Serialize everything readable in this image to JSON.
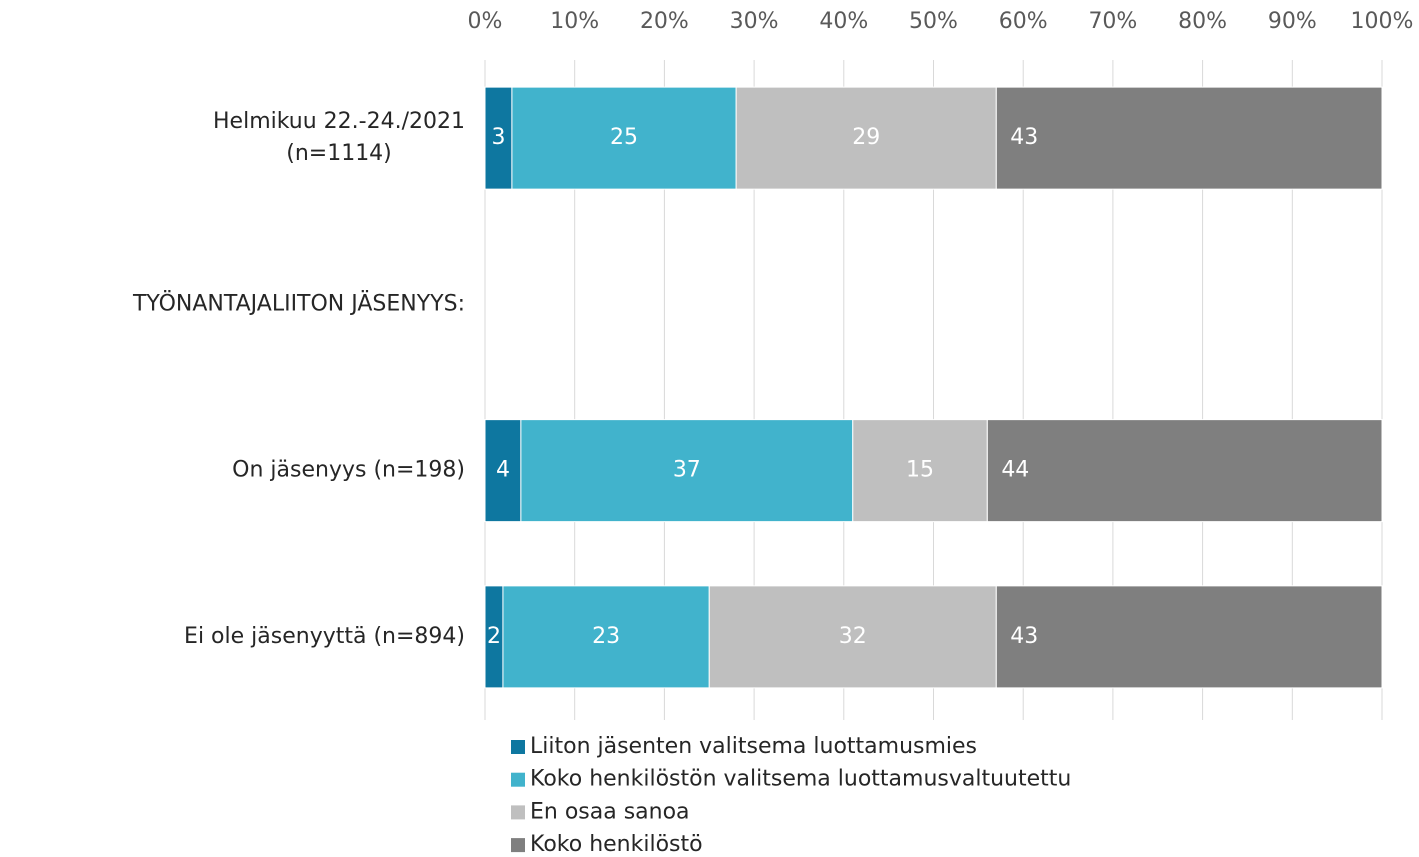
{
  "chart_data": {
    "type": "stacked_bar_horizontal",
    "categories": [
      "Helmikuu 22.-24./2021\n(n=1114)",
      "TYÖNANTAJALIITON JÄSENYYS:",
      "On jäsenyys (n=198)",
      "Ei ole jäsenyyttä (n=894)"
    ],
    "series": [
      {
        "name": "Liiton jäsenten valitsema luottamusmies",
        "color": "#0e77a0",
        "values": [
          3,
          null,
          4,
          2
        ]
      },
      {
        "name": "Koko henkilöstön valitsema luottamusvaltuutettu",
        "color": "#41b3cc",
        "values": [
          25,
          null,
          37,
          23
        ]
      },
      {
        "name": "En osaa sanoa",
        "color": "#bfbfbf",
        "values": [
          29,
          null,
          15,
          32
        ]
      },
      {
        "name": "Koko henkilöstö",
        "color": "#7f7f7f",
        "values": [
          43,
          null,
          44,
          43
        ]
      }
    ],
    "xlim": [
      0,
      100
    ],
    "xticks": [
      {
        "value": 0,
        "label": "0%"
      },
      {
        "value": 10,
        "label": "10%"
      },
      {
        "value": 20,
        "label": "20%"
      },
      {
        "value": 30,
        "label": "30%"
      },
      {
        "value": 40,
        "label": "40%"
      },
      {
        "value": 50,
        "label": "50%"
      },
      {
        "value": 60,
        "label": "60%"
      },
      {
        "value": 70,
        "label": "70%"
      },
      {
        "value": 80,
        "label": "80%"
      },
      {
        "value": 90,
        "label": "90%"
      },
      {
        "value": 100,
        "label": "100%"
      }
    ],
    "grid": true,
    "legend": "bottom"
  }
}
